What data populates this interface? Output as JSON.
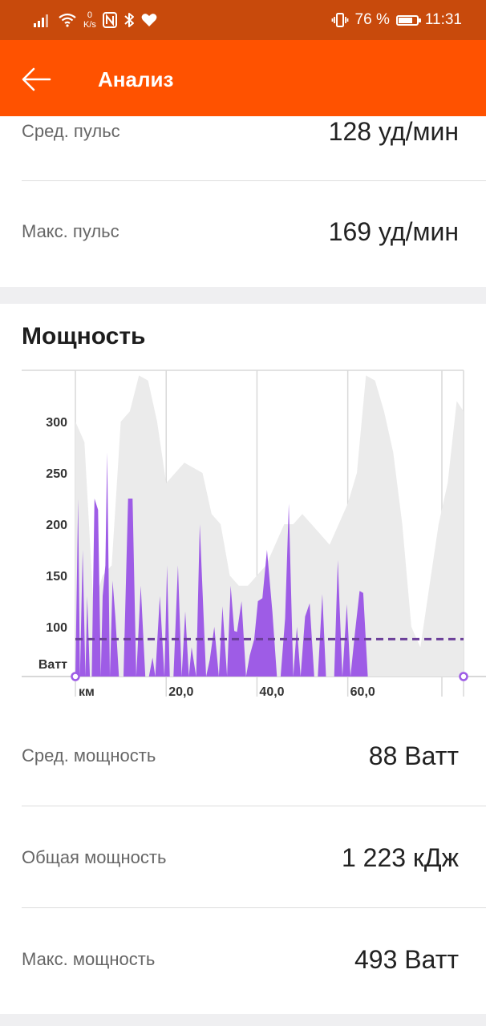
{
  "status_bar": {
    "speed_value": "0",
    "speed_unit": "K/s",
    "battery_percent": "76 %",
    "battery_level": 0.76,
    "time": "11:31"
  },
  "app_bar": {
    "title": "Анализ"
  },
  "heart_rate": {
    "avg_label": "Сред. пульс",
    "avg_value": "128 уд/мин",
    "max_label": "Макс. пульс",
    "max_value": "169 уд/мин"
  },
  "power": {
    "title": "Мощность",
    "avg_label": "Сред. мощность",
    "avg_value": "88 Ватт",
    "total_label": "Общая мощность",
    "total_value": "1 223 кДж",
    "max_label": "Макс. мощность",
    "max_value": "493 Ватт"
  },
  "chart_data": {
    "type": "area",
    "xlabel": "км",
    "ylabel": "Ватт",
    "xlim": [
      0,
      85.5
    ],
    "ylim": [
      50,
      350
    ],
    "x_ticks": [
      20,
      40,
      60
    ],
    "x_tick_labels": [
      "20,0",
      "40,0",
      "60,0"
    ],
    "y_ticks": [
      100,
      150,
      200,
      250,
      300
    ],
    "average_line": 88,
    "colors": {
      "power": "#9e5ce6",
      "elevation": "#ebebeb",
      "average": "#6b3f99",
      "grid": "#d9d9d9"
    },
    "series": [
      {
        "name": "power",
        "x": [
          0.0,
          0.6,
          1.0,
          1.6,
          2.2,
          2.6,
          3.2,
          3.6,
          4.2,
          5.0,
          5.6,
          6.0,
          6.6,
          7.0,
          7.6,
          8.2,
          8.8,
          9.6,
          10.6,
          11.6,
          12.6,
          13.4,
          14.4,
          15.4,
          16.2,
          17.0,
          17.6,
          18.6,
          19.6,
          20.2,
          20.8,
          21.6,
          22.6,
          23.4,
          24.2,
          25.0,
          25.6,
          26.6,
          27.4,
          28.2,
          28.8,
          29.6,
          30.6,
          31.6,
          32.4,
          33.4,
          34.2,
          35.0,
          35.6,
          36.6,
          37.6,
          38.4,
          39.4,
          40.2,
          41.2,
          42.2,
          43.4,
          44.4,
          45.2,
          46.2,
          47.0,
          48.0,
          48.8,
          49.6,
          50.6,
          51.6,
          52.6,
          53.4,
          54.4,
          55.2,
          56.2,
          57.0,
          57.8,
          58.8,
          59.8,
          60.6,
          61.6,
          62.6,
          63.4,
          64.4,
          65.4,
          66.4,
          67.4,
          68.2,
          69.2,
          70.2,
          71.2,
          72.2,
          73.0,
          73.6,
          74.6,
          75.6,
          76.4,
          77.4,
          78.4,
          79.2,
          80.2,
          80.8,
          81.6,
          82.6,
          83.4,
          84.4,
          85.4
        ],
        "y": [
          50,
          225,
          50,
          175,
          50,
          130,
          50,
          50,
          225,
          214,
          50,
          130,
          160,
          270,
          50,
          145,
          110,
          50,
          50,
          225,
          225,
          50,
          140,
          50,
          50,
          70,
          50,
          130,
          50,
          160,
          50,
          50,
          160,
          50,
          115,
          50,
          80,
          50,
          200,
          115,
          50,
          68,
          100,
          50,
          120,
          52,
          140,
          96,
          95,
          125,
          50,
          72,
          88,
          125,
          128,
          175,
          114,
          50,
          50,
          108,
          220,
          50,
          100,
          50,
          110,
          123,
          51,
          50,
          132,
          50,
          50,
          50,
          165,
          50,
          122,
          50,
          95,
          135,
          133,
          50,
          50,
          50,
          50,
          50,
          50,
          50,
          50,
          50,
          50,
          50,
          50,
          50,
          50,
          50,
          50,
          50,
          50,
          50,
          50,
          50,
          50,
          50,
          50
        ]
      },
      {
        "name": "elevation",
        "x": [
          0,
          2,
          4,
          6,
          8,
          10,
          12,
          14,
          16,
          18,
          20,
          22,
          24,
          26,
          28,
          30,
          32,
          34,
          36,
          38,
          40,
          42,
          44,
          46,
          48,
          50,
          52,
          54,
          56,
          58,
          60,
          62,
          64,
          66,
          68,
          70,
          72,
          74,
          76,
          78,
          80,
          82,
          84,
          85.5
        ],
        "y": [
          300,
          280,
          120,
          150,
          160,
          300,
          310,
          345,
          340,
          300,
          240,
          250,
          260,
          255,
          250,
          210,
          200,
          150,
          140,
          140,
          150,
          160,
          180,
          200,
          200,
          210,
          200,
          190,
          180,
          200,
          220,
          250,
          345,
          340,
          310,
          270,
          200,
          100,
          80,
          140,
          200,
          240,
          320,
          310
        ]
      }
    ]
  }
}
